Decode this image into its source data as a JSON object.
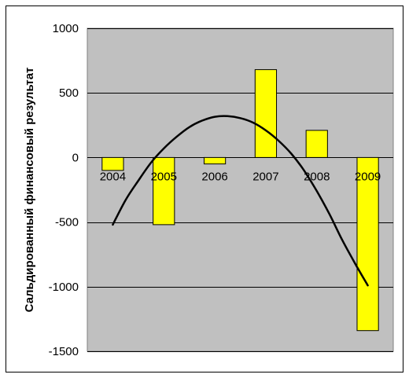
{
  "chart_data": {
    "type": "bar",
    "title": "",
    "xlabel": "",
    "ylabel": "Сальдированный финансовый результат",
    "categories": [
      "2004",
      "2005",
      "2006",
      "2007",
      "2008",
      "2009"
    ],
    "series": [
      {
        "values": [
          -100,
          -520,
          -50,
          680,
          210,
          -1340
        ]
      }
    ],
    "trendline": {
      "type": "polynomial",
      "x": [
        2004,
        2004.25,
        2004.5,
        2004.75,
        2005,
        2005.25,
        2005.5,
        2005.75,
        2006,
        2006.25,
        2006.5,
        2006.75,
        2007,
        2007.25,
        2007.5,
        2007.75,
        2008,
        2008.25,
        2008.5,
        2008.75,
        2009
      ],
      "y": [
        -520,
        -330,
        -180,
        -40,
        70,
        160,
        235,
        285,
        315,
        320,
        305,
        270,
        210,
        130,
        30,
        -100,
        -260,
        -440,
        -640,
        -820,
        -990
      ]
    },
    "yticks": [
      1000,
      500,
      0,
      -500,
      -1000,
      -1500
    ],
    "ylim": [
      -1500,
      1000
    ],
    "grid": true,
    "legend": "none",
    "colors": {
      "bar_fill": "#ffff00",
      "bar_stroke": "#000000",
      "plot_background": "#c0c0c0",
      "trendline": "#000000",
      "gridline": "#000000"
    }
  }
}
